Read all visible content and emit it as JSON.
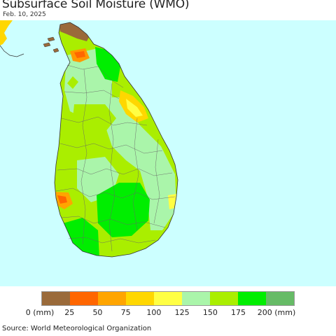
{
  "title": "Subsurface Soil Moisture (WMO)",
  "date": "Feb. 10, 2025",
  "source": "Source: World Meteorological Organization",
  "map": {
    "ocean_color": "#ccffff",
    "land_base_color": "#aaee00"
  },
  "legend": {
    "colors": [
      "#9a6a3a",
      "#ff6600",
      "#ffa500",
      "#ffd700",
      "#ffff44",
      "#aaf5aa",
      "#aaee00",
      "#00ee00",
      "#66bb66"
    ],
    "labels": [
      "0 (mm)",
      "25",
      "50",
      "75",
      "100",
      "125",
      "150",
      "175",
      "200 (mm)"
    ]
  }
}
